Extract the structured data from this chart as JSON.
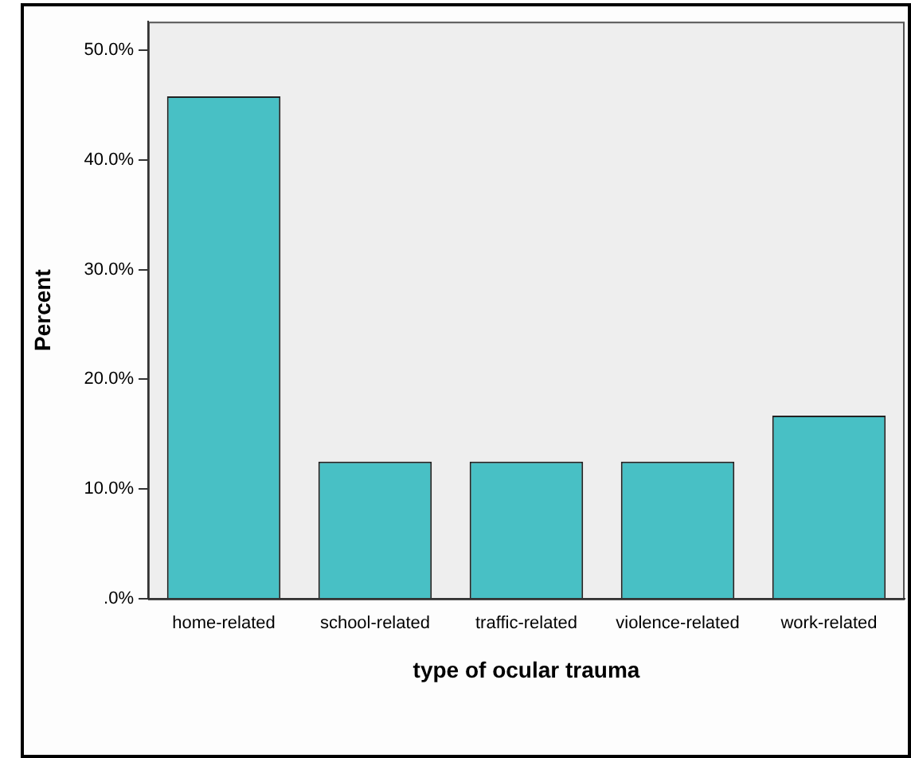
{
  "chart_data": {
    "type": "bar",
    "xlabel": "type of ocular trauma",
    "ylabel": "Percent",
    "categories": [
      "home-related",
      "school-related",
      "traffic-related",
      "violence-related",
      "work-related"
    ],
    "values": [
      45.8,
      12.5,
      12.5,
      12.5,
      16.7
    ],
    "color": "#48c0c5",
    "ylim": [
      0,
      52.6
    ],
    "yticks": [
      {
        "value": 0,
        "label": ".0%"
      },
      {
        "value": 10,
        "label": "10.0%"
      },
      {
        "value": 20,
        "label": "20.0%"
      },
      {
        "value": 30,
        "label": "30.0%"
      },
      {
        "value": 40,
        "label": "40.0%"
      },
      {
        "value": 50,
        "label": "50.0%"
      }
    ],
    "grid": false,
    "legend": false
  }
}
